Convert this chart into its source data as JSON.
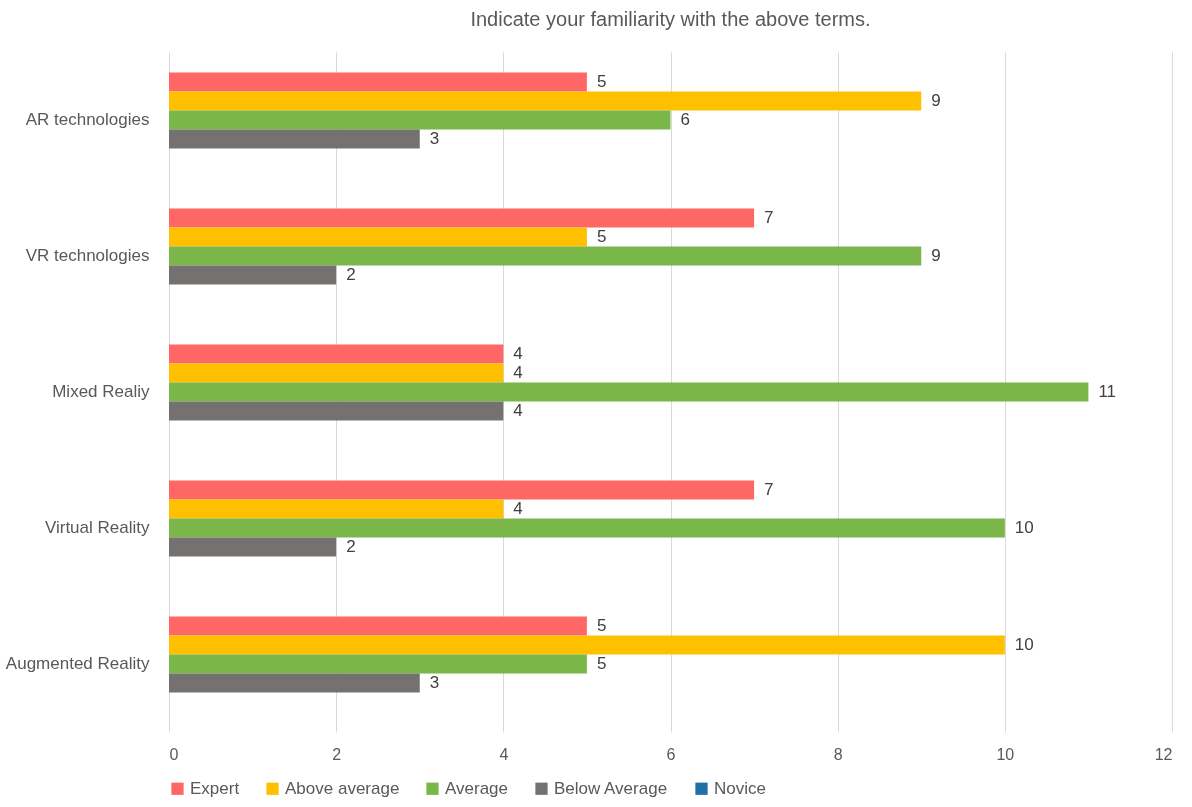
{
  "chart_data": {
    "type": "bar",
    "orientation": "horizontal",
    "title": "Indicate your familiarity with the above terms.",
    "categories": [
      "AR technologies",
      "VR technologies",
      "Mixed Realiy",
      "Virtual Reality",
      "Augmented Reality"
    ],
    "series": [
      {
        "name": "Expert",
        "color": "#ff6666",
        "values": [
          5,
          7,
          4,
          7,
          5
        ]
      },
      {
        "name": "Above average",
        "color": "#ffc000",
        "values": [
          9,
          5,
          4,
          4,
          10
        ]
      },
      {
        "name": "Average",
        "color": "#7ab648",
        "values": [
          6,
          9,
          11,
          10,
          5
        ]
      },
      {
        "name": "Below Average",
        "color": "#767171",
        "values": [
          3,
          2,
          4,
          2,
          3
        ]
      },
      {
        "name": "Novice",
        "color": "#1f6fa8",
        "values": [
          null,
          null,
          null,
          null,
          null
        ]
      }
    ],
    "xlim": [
      0,
      12
    ],
    "xticks": [
      0,
      2,
      4,
      6,
      8,
      10,
      12
    ],
    "grid": "x",
    "legend": "bottom",
    "data_labels": true
  }
}
